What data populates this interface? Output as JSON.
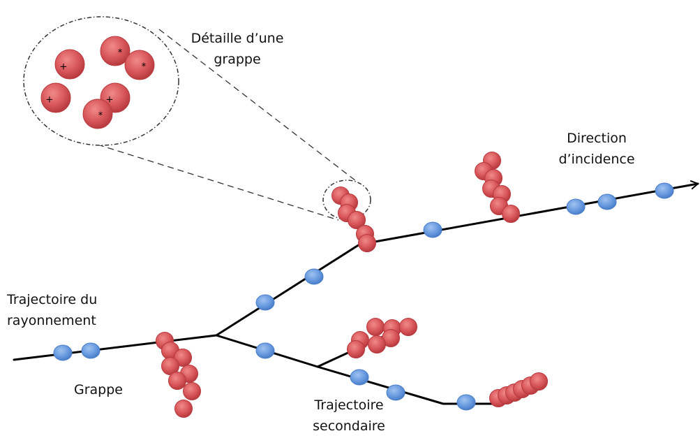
{
  "labels": {
    "detail_line1": "Détaille d’une",
    "detail_line2": "grappe",
    "direction_line1": "Direction",
    "direction_line2": "d’incidence",
    "trajectory_line1": "Trajectoire du",
    "trajectory_line2": "rayonnement",
    "cluster": "Grappe",
    "secondary_line1": "Trajectoire",
    "secondary_line2": "secondaire"
  },
  "detail_signs": [
    "+",
    "*",
    "*",
    "+",
    "+",
    "*"
  ],
  "colors": {
    "track": "#000000",
    "ionization_fill": "#d9575a",
    "ionization_dark": "#b83a3f",
    "excitation_fill": "#6a9be0",
    "excitation_dark": "#4a7ec9",
    "dashed_outline": "#333333"
  }
}
